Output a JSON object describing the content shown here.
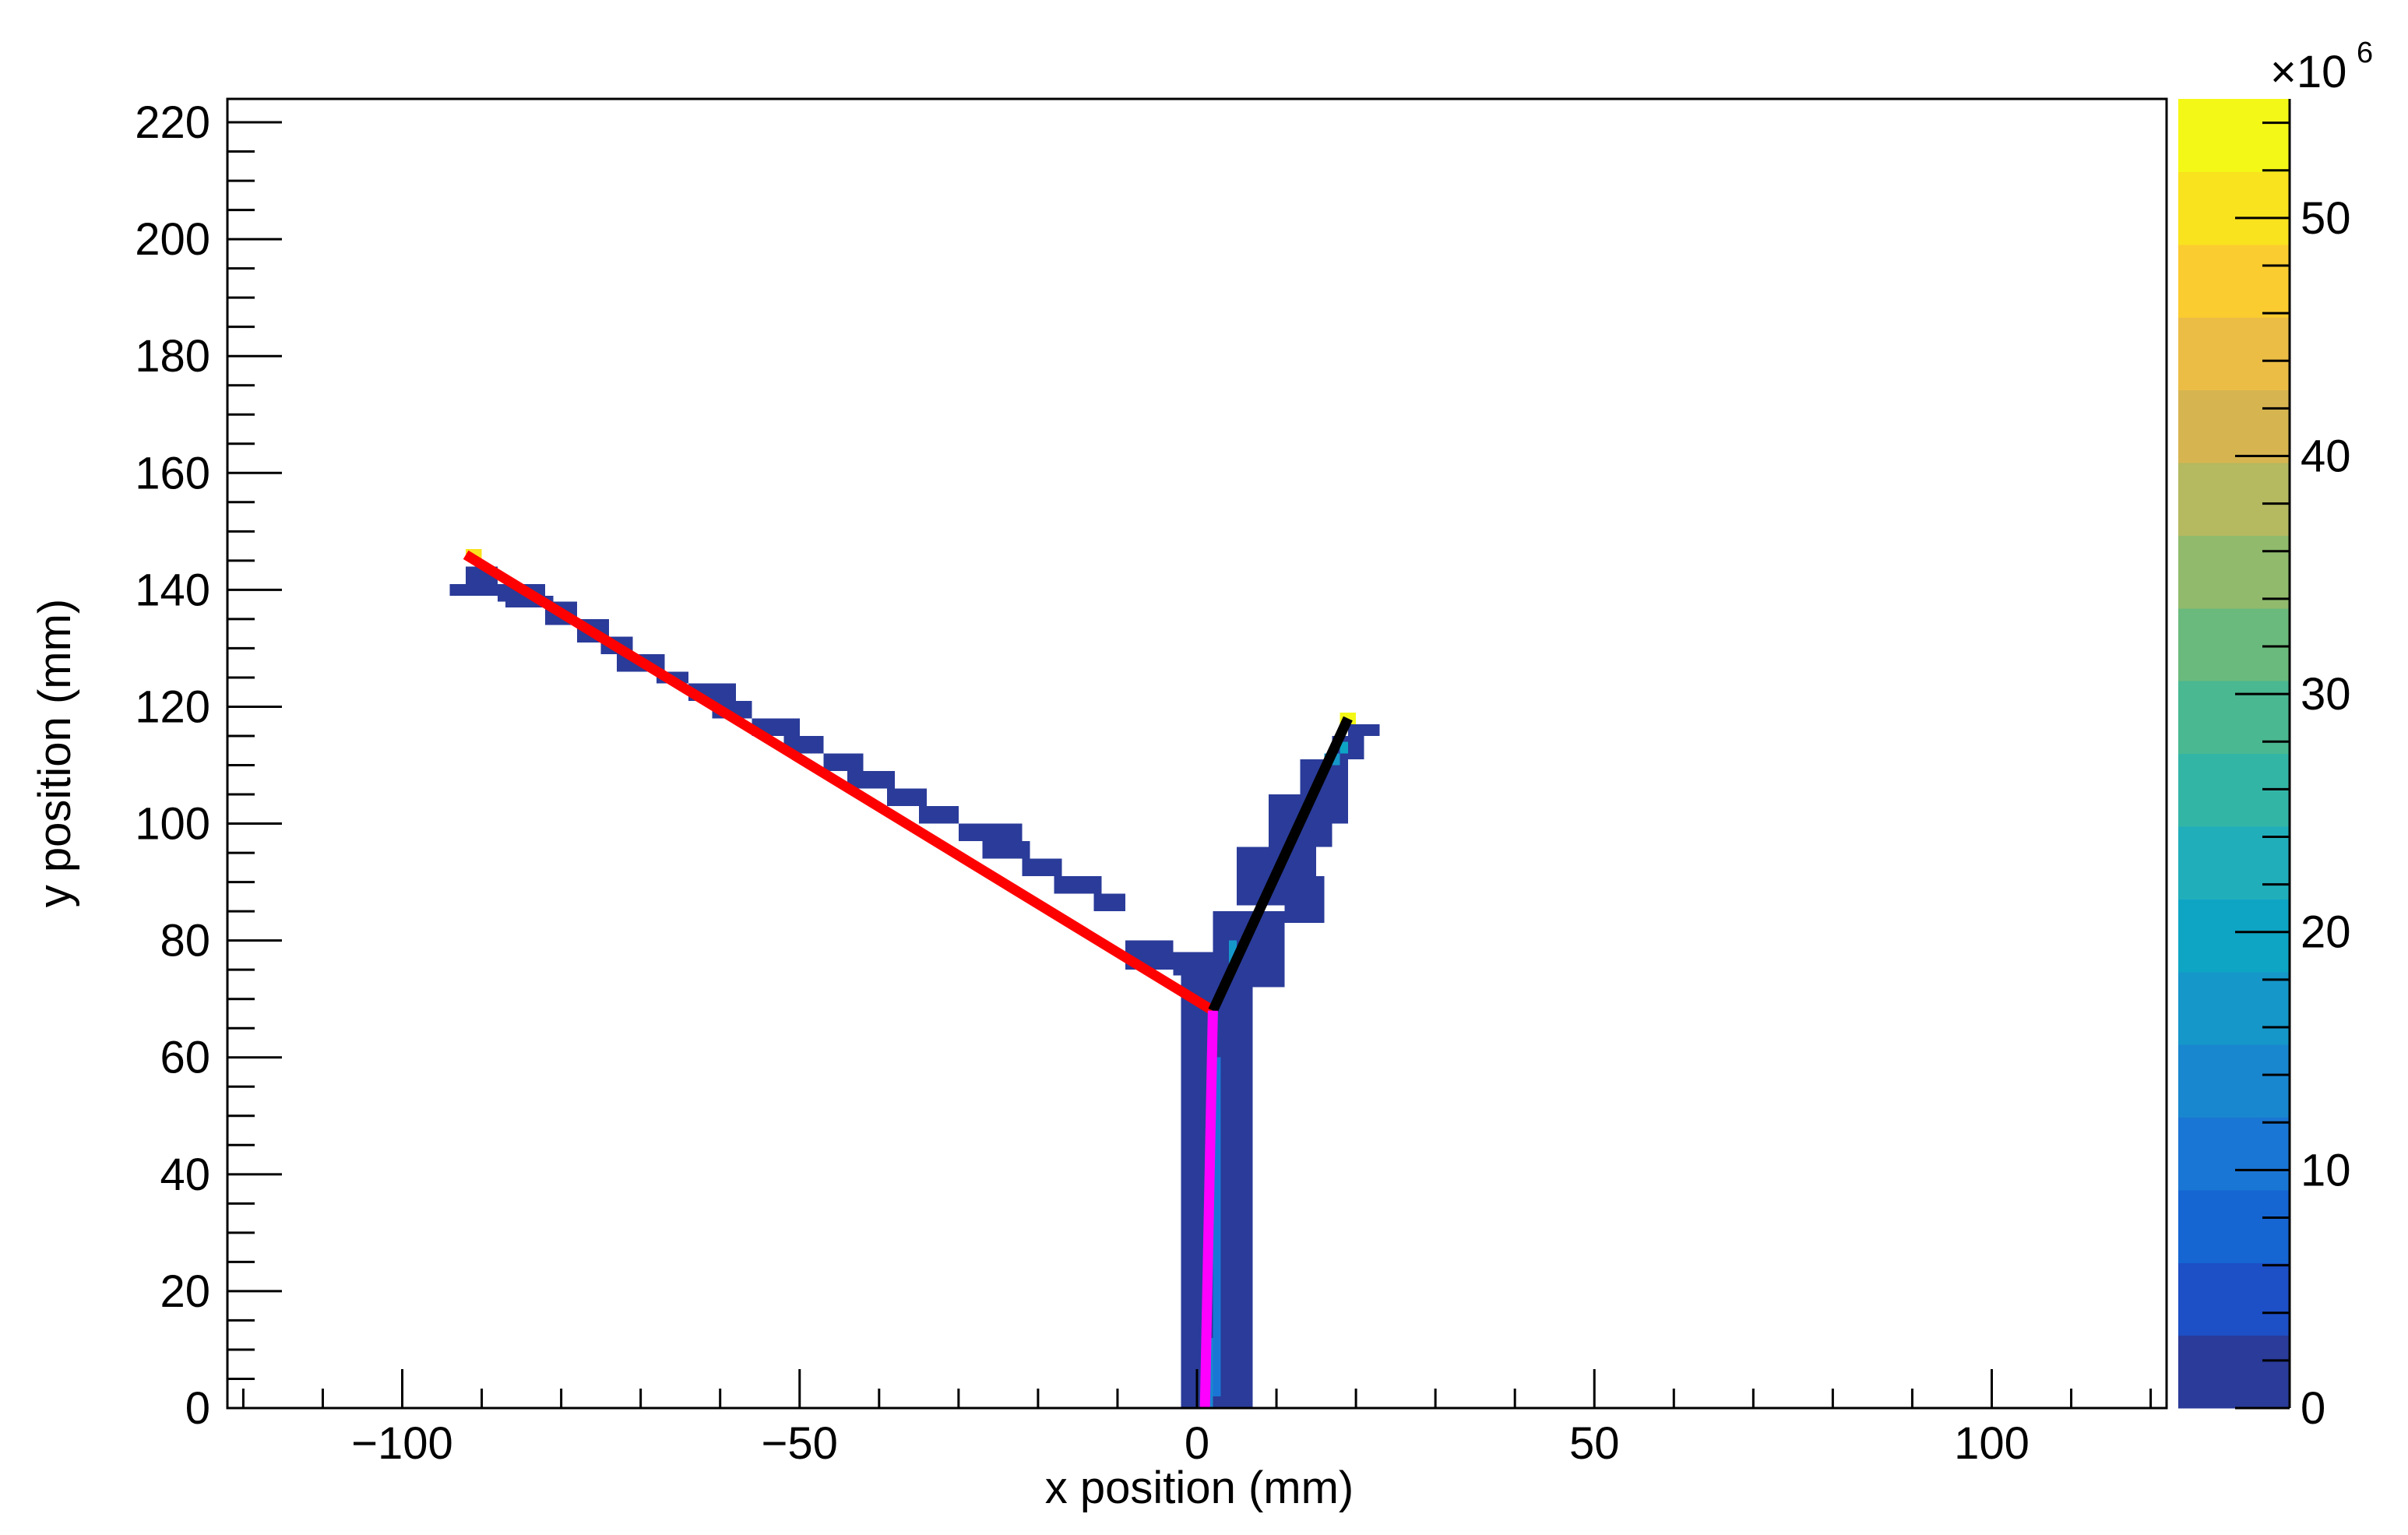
{
  "chart_data": {
    "type": "heatmap",
    "xlabel": "x position (mm)",
    "ylabel": "y position (mm)",
    "xlim": [
      -122,
      122
    ],
    "ylim": [
      0,
      224
    ],
    "x_ticks": [
      -100,
      -50,
      0,
      50,
      100
    ],
    "x_tick_labels": [
      "−100",
      "−50",
      "0",
      "50",
      "100"
    ],
    "y_ticks": [
      0,
      20,
      40,
      60,
      80,
      100,
      120,
      140,
      160,
      180,
      200,
      220
    ],
    "y_tick_labels": [
      "0",
      "20",
      "40",
      "60",
      "80",
      "100",
      "120",
      "140",
      "160",
      "180",
      "200",
      "220"
    ],
    "colorbar": {
      "min": 0,
      "max": 55,
      "ticks": [
        0,
        10,
        20,
        30,
        40,
        50
      ],
      "tick_labels": [
        "0",
        "10",
        "20",
        "30",
        "40",
        "50"
      ],
      "multiplier_label": "×10",
      "multiplier_exponent": "6",
      "palette": [
        "#2a3b99",
        "#1d4fc6",
        "#1565d2",
        "#1a76d4",
        "#1987cf",
        "#1597c9",
        "#0ea5c5",
        "#21aebb",
        "#33b5a6",
        "#4ab891",
        "#6bba7d",
        "#91ba6c",
        "#b5b960",
        "#d6b550",
        "#ecbd45",
        "#fbcc30",
        "#f9e21e",
        "#f4f816"
      ]
    },
    "grid": false,
    "cells": [
      {
        "x0": -94,
        "x1": -86,
        "y0": 139,
        "y1": 141,
        "v": 1
      },
      {
        "x0": -92,
        "x1": -88,
        "y0": 141,
        "y1": 144,
        "v": 1
      },
      {
        "x0": -88,
        "x1": -82,
        "y0": 138,
        "y1": 141,
        "v": 1
      },
      {
        "x0": -87,
        "x1": -81,
        "y0": 137,
        "y1": 139,
        "v": 1
      },
      {
        "x0": -82,
        "x1": -78,
        "y0": 134,
        "y1": 138,
        "v": 1
      },
      {
        "x0": -78,
        "x1": -74,
        "y0": 131,
        "y1": 135,
        "v": 1
      },
      {
        "x0": -75,
        "x1": -71,
        "y0": 129,
        "y1": 132,
        "v": 1
      },
      {
        "x0": -73,
        "x1": -67,
        "y0": 126,
        "y1": 129,
        "v": 1
      },
      {
        "x0": -68,
        "x1": -64,
        "y0": 124,
        "y1": 126,
        "v": 1
      },
      {
        "x0": -64,
        "x1": -58,
        "y0": 121,
        "y1": 124,
        "v": 1
      },
      {
        "x0": -61,
        "x1": -56,
        "y0": 118,
        "y1": 121,
        "v": 1
      },
      {
        "x0": -56,
        "x1": -50,
        "y0": 115,
        "y1": 118,
        "v": 1
      },
      {
        "x0": -52,
        "x1": -47,
        "y0": 112,
        "y1": 115,
        "v": 1
      },
      {
        "x0": -47,
        "x1": -42,
        "y0": 109,
        "y1": 112,
        "v": 1
      },
      {
        "x0": -44,
        "x1": -38,
        "y0": 106,
        "y1": 109,
        "v": 1
      },
      {
        "x0": -39,
        "x1": -34,
        "y0": 103,
        "y1": 106,
        "v": 1
      },
      {
        "x0": -35,
        "x1": -30,
        "y0": 100,
        "y1": 103,
        "v": 1
      },
      {
        "x0": -30,
        "x1": -22,
        "y0": 97,
        "y1": 100,
        "v": 1
      },
      {
        "x0": -27,
        "x1": -21,
        "y0": 94,
        "y1": 97,
        "v": 1
      },
      {
        "x0": -22,
        "x1": -17,
        "y0": 91,
        "y1": 94,
        "v": 1
      },
      {
        "x0": -18,
        "x1": -12,
        "y0": 88,
        "y1": 91,
        "v": 1
      },
      {
        "x0": -13,
        "x1": -9,
        "y0": 85,
        "y1": 88,
        "v": 1
      },
      {
        "x0": -9,
        "x1": -3,
        "y0": 75,
        "y1": 80,
        "v": 1
      },
      {
        "x0": -3,
        "x1": 4,
        "y0": 74,
        "y1": 78,
        "v": 1
      },
      {
        "x0": -2,
        "x1": 7,
        "y0": 68,
        "y1": 75,
        "v": 1
      },
      {
        "x0": -2,
        "x1": 7,
        "y0": 0,
        "y1": 68,
        "v": 1
      },
      {
        "x0": 2,
        "x1": 3,
        "y0": 2,
        "y1": 60,
        "v": 12
      },
      {
        "x0": 1,
        "x1": 2,
        "y0": 0,
        "y1": 12,
        "v": 15
      },
      {
        "x0": 2,
        "x1": 11,
        "y0": 75,
        "y1": 85,
        "v": 1
      },
      {
        "x0": 6,
        "x1": 11,
        "y0": 72,
        "y1": 76,
        "v": 1
      },
      {
        "x0": 5,
        "x1": 15,
        "y0": 86,
        "y1": 96,
        "v": 1
      },
      {
        "x0": 11,
        "x1": 16,
        "y0": 83,
        "y1": 91,
        "v": 1
      },
      {
        "x0": 9,
        "x1": 17,
        "y0": 96,
        "y1": 105,
        "v": 1
      },
      {
        "x0": 13,
        "x1": 19,
        "y0": 100,
        "y1": 111,
        "v": 1
      },
      {
        "x0": 17,
        "x1": 21,
        "y0": 111,
        "y1": 115,
        "v": 1
      },
      {
        "x0": 19,
        "x1": 23,
        "y0": 115,
        "y1": 117,
        "v": 1
      },
      {
        "x0": 16,
        "x1": 18,
        "y0": 110,
        "y1": 112,
        "v": 16
      },
      {
        "x0": 18,
        "x1": 19,
        "y0": 112,
        "y1": 114,
        "v": 20
      },
      {
        "x0": 4,
        "x1": 5,
        "y0": 76,
        "y1": 80,
        "v": 18
      },
      {
        "x0": -92,
        "x1": -90,
        "y0": 145,
        "y1": 147,
        "v": 50
      },
      {
        "x0": 18,
        "x1": 20,
        "y0": 117,
        "y1": 119,
        "v": 52
      }
    ],
    "series": [
      {
        "color": "#ff0000",
        "x": [
          -92,
          2
        ],
        "y": [
          146,
          68
        ]
      },
      {
        "color": "#000000",
        "x": [
          2,
          19
        ],
        "y": [
          68,
          118
        ]
      },
      {
        "color": "#ff00ff",
        "x": [
          2,
          1
        ],
        "y": [
          68,
          0
        ]
      }
    ]
  }
}
